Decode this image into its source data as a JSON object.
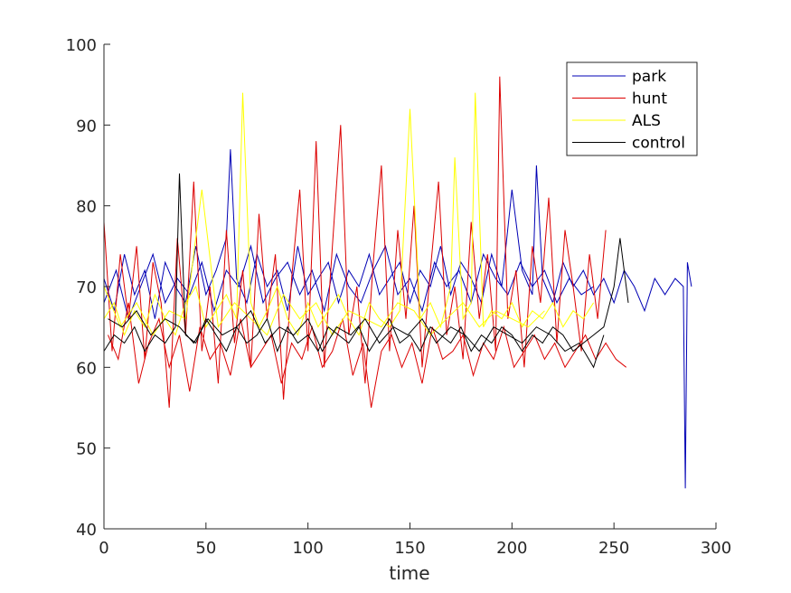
{
  "chart_data": {
    "type": "line",
    "title": "",
    "xlabel": "time",
    "ylabel": "",
    "xlim": [
      0,
      300
    ],
    "ylim": [
      40,
      100
    ],
    "xticks": [
      0,
      50,
      100,
      150,
      200,
      250,
      300
    ],
    "yticks": [
      40,
      50,
      60,
      70,
      80,
      90,
      100
    ],
    "grid": false,
    "legend_position": "top-right",
    "series": [
      {
        "name": "park",
        "color": "#0000b4",
        "lines": [
          {
            "x": [
              0,
              5,
              10,
              15,
              20,
              25,
              30,
              35,
              40,
              45,
              50,
              55,
              60,
              62,
              65,
              70,
              75,
              80,
              85,
              90,
              95,
              100,
              105,
              110,
              115,
              120,
              125,
              130,
              135,
              140,
              145,
              150,
              155,
              160,
              165,
              170,
              175,
              180,
              185,
              190,
              195,
              200,
              205,
              210,
              212,
              215,
              220,
              225,
              230,
              235,
              240,
              245,
              250,
              255,
              260,
              265,
              270,
              275,
              280,
              284,
              285,
              286,
              288
            ],
            "y": [
              71,
              67,
              74,
              69,
              72,
              66,
              73,
              70,
              68,
              75,
              69,
              72,
              76,
              87,
              71,
              68,
              74,
              70,
              72,
              67,
              75,
              69,
              71,
              73,
              68,
              72,
              70,
              74,
              69,
              71,
              73,
              68,
              72,
              70,
              75,
              69,
              73,
              71,
              68,
              74,
              70,
              82,
              72,
              69,
              85,
              71,
              68,
              73,
              70,
              72,
              69,
              71,
              68,
              72,
              70,
              67,
              71,
              69,
              71,
              70,
              45,
              73,
              70
            ]
          },
          {
            "x": [
              0,
              6,
              12,
              18,
              24,
              30,
              36,
              42,
              48,
              54,
              60,
              66,
              72,
              78,
              84,
              90,
              96,
              102,
              108,
              114,
              120,
              126,
              132,
              138,
              144,
              150,
              156,
              162,
              168,
              174,
              180,
              186,
              192,
              198,
              204,
              210,
              216,
              222,
              228,
              234,
              240
            ],
            "y": [
              68,
              72,
              66,
              70,
              74,
              68,
              71,
              69,
              73,
              67,
              72,
              70,
              75,
              68,
              71,
              73,
              69,
              72,
              67,
              74,
              70,
              68,
              72,
              75,
              69,
              71,
              67,
              73,
              70,
              72,
              68,
              74,
              71,
              69,
              73,
              70,
              72,
              68,
              71,
              69,
              70
            ]
          }
        ]
      },
      {
        "name": "hunt",
        "color": "#dc0000",
        "lines": [
          {
            "x": [
              0,
              4,
              8,
              12,
              16,
              20,
              24,
              28,
              32,
              36,
              40,
              44,
              48,
              52,
              56,
              60,
              64,
              68,
              72,
              76,
              80,
              84,
              88,
              92,
              96,
              100,
              104,
              108,
              112,
              116,
              120,
              124,
              128,
              132,
              136,
              140,
              144,
              148,
              152,
              156,
              160,
              164,
              168,
              172,
              176,
              180,
              184,
              188,
              192,
              194,
              198,
              202,
              206,
              210,
              214,
              218,
              222,
              226,
              230,
              234,
              238,
              242,
              246
            ],
            "y": [
              78,
              62,
              74,
              66,
              75,
              61,
              73,
              68,
              55,
              76,
              64,
              83,
              62,
              70,
              58,
              77,
              63,
              72,
              60,
              79,
              66,
              74,
              56,
              71,
              82,
              62,
              88,
              60,
              75,
              90,
              64,
              70,
              58,
              73,
              85,
              62,
              77,
              66,
              80,
              60,
              72,
              83,
              64,
              70,
              61,
              78,
              66,
              74,
              62,
              96,
              66,
              72,
              60,
              75,
              68,
              81,
              63,
              77,
              70,
              62,
              74,
              66,
              77
            ]
          },
          {
            "x": [
              2,
              7,
              12,
              17,
              22,
              27,
              32,
              37,
              42,
              47,
              52,
              57,
              62,
              67,
              72,
              77,
              82,
              87,
              92,
              97,
              102,
              107,
              112,
              117,
              122,
              127,
              131,
              136,
              141,
              146,
              151,
              156,
              161,
              166,
              171,
              176,
              181,
              186,
              191,
              196,
              201,
              206,
              211,
              216,
              221,
              226,
              231,
              236,
              241,
              246,
              251,
              256
            ],
            "y": [
              64,
              61,
              68,
              58,
              63,
              66,
              60,
              64,
              57,
              65,
              61,
              63,
              59,
              66,
              60,
              62,
              64,
              58,
              63,
              61,
              65,
              60,
              62,
              66,
              59,
              63,
              55,
              62,
              64,
              60,
              63,
              58,
              65,
              61,
              62,
              64,
              59,
              63,
              61,
              65,
              60,
              62,
              64,
              61,
              63,
              60,
              62,
              64,
              61,
              63,
              61,
              60
            ]
          }
        ]
      },
      {
        "name": "ALS",
        "color": "#ffff00",
        "lines": [
          {
            "x": [
              0,
              5,
              10,
              15,
              20,
              25,
              30,
              35,
              40,
              45,
              50,
              55,
              60,
              65,
              68,
              72,
              76,
              80,
              85,
              90,
              95,
              100,
              105,
              110,
              115,
              120,
              125,
              130,
              135,
              140,
              145,
              150,
              155,
              160,
              165,
              170,
              172,
              176,
              180,
              182,
              186,
              190,
              195,
              200,
              205,
              210,
              215,
              220,
              225,
              230,
              235,
              240
            ],
            "y": [
              66,
              68,
              64,
              67,
              65,
              69,
              66,
              64,
              68,
              70,
              65,
              67,
              69,
              66,
              94,
              68,
              65,
              67,
              70,
              66,
              64,
              68,
              65,
              67,
              69,
              66,
              64,
              68,
              66,
              65,
              67,
              92,
              66,
              68,
              65,
              70,
              86,
              66,
              68,
              94,
              65,
              67,
              66,
              68,
              65,
              67,
              66,
              68,
              65,
              67,
              66,
              68
            ]
          },
          {
            "x": [
              0,
              8,
              16,
              24,
              32,
              40,
              48,
              56,
              64,
              72,
              80,
              88,
              96,
              104,
              112,
              120,
              128,
              136,
              144,
              152,
              160,
              168,
              176,
              184,
              192,
              200,
              208,
              216
            ],
            "y": [
              70,
              65,
              68,
              64,
              67,
              66,
              82,
              65,
              68,
              66,
              64,
              69,
              66,
              68,
              64,
              67,
              66,
              65,
              68,
              67,
              64,
              66,
              68,
              65,
              67,
              66,
              65,
              67
            ]
          }
        ]
      },
      {
        "name": "control",
        "color": "#000000",
        "lines": [
          {
            "x": [
              0,
              5,
              10,
              15,
              20,
              25,
              30,
              35,
              37,
              40,
              45,
              50,
              55,
              60,
              65,
              70,
              75,
              80,
              85,
              90,
              95,
              100,
              105,
              110,
              115,
              120,
              125,
              130,
              135,
              140,
              145,
              150,
              155,
              160,
              165,
              170,
              175,
              180,
              185,
              190,
              195,
              200,
              205,
              210,
              215,
              220,
              225,
              230,
              235,
              240,
              245,
              250,
              253,
              257
            ],
            "y": [
              62,
              64,
              63,
              65,
              62,
              64,
              63,
              65,
              84,
              64,
              63,
              66,
              64,
              62,
              65,
              63,
              64,
              66,
              62,
              65,
              63,
              64,
              62,
              65,
              64,
              63,
              65,
              62,
              64,
              66,
              63,
              64,
              62,
              65,
              64,
              63,
              65,
              62,
              64,
              63,
              65,
              64,
              62,
              64,
              63,
              65,
              64,
              62,
              63,
              64,
              65,
              70,
              76,
              68
            ]
          },
          {
            "x": [
              2,
              9,
              16,
              23,
              30,
              37,
              44,
              51,
              58,
              65,
              72,
              79,
              86,
              93,
              100,
              107,
              114,
              121,
              128,
              135,
              142,
              149,
              156,
              163,
              170,
              177,
              184,
              191,
              198,
              205,
              212,
              219,
              226,
              233,
              240,
              245
            ],
            "y": [
              66,
              65,
              67,
              64,
              66,
              65,
              63,
              66,
              64,
              65,
              67,
              63,
              65,
              64,
              66,
              62,
              65,
              64,
              66,
              63,
              65,
              64,
              66,
              63,
              65,
              64,
              62,
              65,
              64,
              63,
              65,
              64,
              62,
              63,
              60,
              64
            ]
          }
        ]
      }
    ]
  }
}
